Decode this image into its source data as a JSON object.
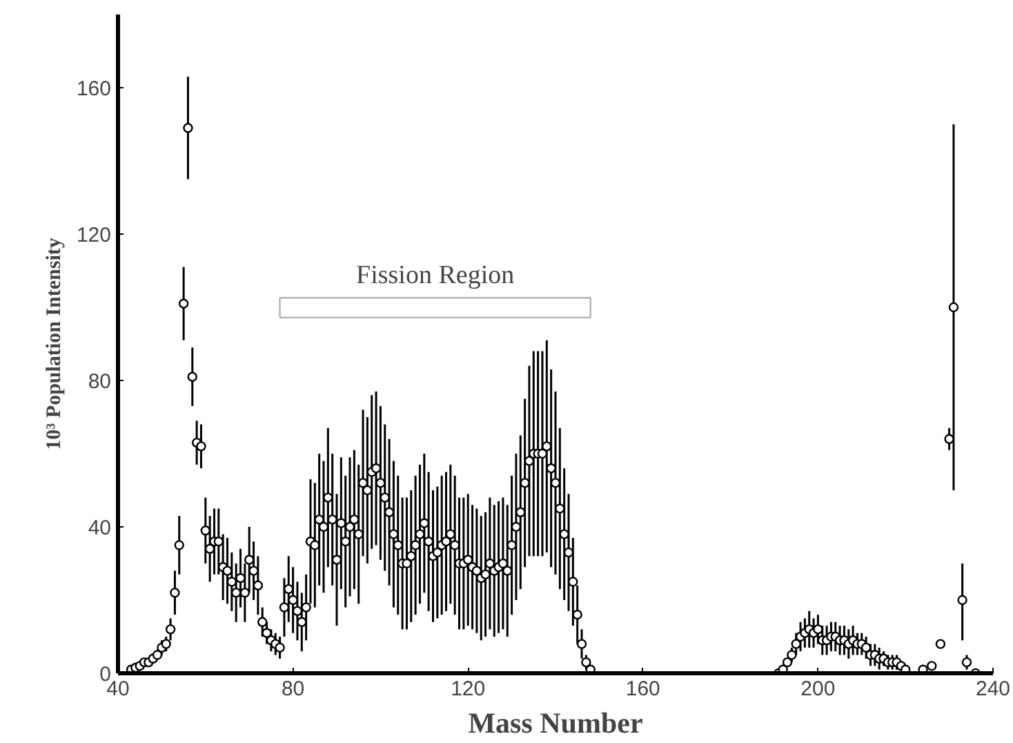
{
  "chart_data": {
    "type": "scatter",
    "xlabel": "Mass Number",
    "ylabel": "10³ Population Intensity",
    "x": [
      43,
      44,
      45,
      46,
      47,
      48,
      49,
      50,
      51,
      52,
      53,
      54,
      55,
      56,
      57,
      58,
      59,
      60,
      61,
      62,
      63,
      64,
      65,
      66,
      67,
      68,
      69,
      70,
      71,
      72,
      73,
      74,
      75,
      76,
      77,
      78,
      79,
      80,
      81,
      82,
      83,
      84,
      85,
      86,
      87,
      88,
      89,
      90,
      91,
      92,
      93,
      94,
      95,
      96,
      97,
      98,
      99,
      100,
      101,
      102,
      103,
      104,
      105,
      106,
      107,
      108,
      109,
      110,
      111,
      112,
      113,
      114,
      115,
      116,
      117,
      118,
      119,
      120,
      121,
      122,
      123,
      124,
      125,
      126,
      127,
      128,
      129,
      130,
      131,
      132,
      133,
      134,
      135,
      136,
      137,
      138,
      139,
      140,
      141,
      142,
      143,
      144,
      145,
      146,
      147,
      148,
      191,
      192,
      193,
      194,
      195,
      196,
      197,
      198,
      199,
      200,
      201,
      202,
      203,
      204,
      205,
      206,
      207,
      208,
      209,
      210,
      211,
      212,
      213,
      214,
      215,
      216,
      217,
      218,
      219,
      220,
      224,
      226,
      228,
      230,
      231,
      233,
      234,
      236
    ],
    "values": [
      1,
      1.5,
      2,
      3,
      3,
      4,
      5,
      7,
      8,
      12,
      22,
      35,
      101,
      149,
      81,
      63,
      62,
      39,
      34,
      36,
      36,
      29,
      28,
      25,
      22,
      26,
      22,
      31,
      28,
      24,
      14,
      11,
      9,
      8,
      7,
      18,
      23,
      20,
      17,
      14,
      18,
      36,
      35,
      42,
      40,
      48,
      42,
      31,
      41,
      36,
      40,
      42,
      38,
      52,
      50,
      55,
      56,
      52,
      48,
      44,
      38,
      35,
      30,
      30,
      32,
      35,
      38,
      41,
      36,
      32,
      33,
      35,
      36,
      38,
      35,
      30,
      30,
      31,
      29,
      28,
      26,
      27,
      30,
      28,
      29,
      30,
      28,
      35,
      40,
      44,
      52,
      58,
      60,
      60,
      60,
      62,
      56,
      52,
      45,
      38,
      33,
      25,
      16,
      8,
      3,
      1,
      0,
      1,
      3,
      5,
      8,
      10,
      11,
      12,
      11,
      12,
      9,
      9,
      10,
      10,
      9,
      9,
      8,
      9,
      8,
      8,
      7,
      5,
      5,
      4,
      4,
      3,
      3,
      3,
      2,
      1,
      1,
      2,
      8,
      64,
      100,
      20,
      3,
      0
    ],
    "errors": [
      null,
      null,
      null,
      null,
      null,
      null,
      1,
      2,
      2,
      3,
      6,
      8,
      10,
      14,
      8,
      6,
      6,
      9,
      9,
      9,
      9,
      9,
      9,
      8,
      8,
      8,
      8,
      9,
      8,
      8,
      4,
      3,
      3,
      3,
      3,
      8,
      9,
      9,
      8,
      8,
      9,
      17,
      17,
      18,
      18,
      19,
      18,
      18,
      18,
      18,
      19,
      19,
      19,
      20,
      20,
      21,
      21,
      21,
      20,
      20,
      20,
      19,
      18,
      18,
      18,
      19,
      19,
      19,
      19,
      18,
      18,
      19,
      19,
      19,
      19,
      18,
      18,
      18,
      17,
      17,
      17,
      17,
      18,
      18,
      18,
      18,
      18,
      19,
      20,
      21,
      23,
      26,
      28,
      28,
      28,
      29,
      27,
      25,
      22,
      18,
      16,
      12,
      8,
      4,
      2,
      null,
      null,
      null,
      1,
      2,
      3,
      4,
      4,
      5,
      4,
      4,
      4,
      4,
      4,
      4,
      4,
      4,
      4,
      4,
      3,
      3,
      3,
      3,
      3,
      3,
      2,
      2,
      2,
      2,
      null,
      null,
      null,
      null,
      null,
      3,
      [
        50,
        150
      ],
      [
        9,
        30
      ],
      2,
      null
    ],
    "xlim": [
      40,
      240
    ],
    "ylim": [
      0,
      180
    ],
    "xticks": [
      40,
      80,
      120,
      160,
      200,
      240
    ],
    "yticks": [
      0,
      40,
      80,
      120,
      160
    ],
    "annotations": [
      "Fission Region"
    ],
    "grid": false,
    "marker": "circle"
  }
}
